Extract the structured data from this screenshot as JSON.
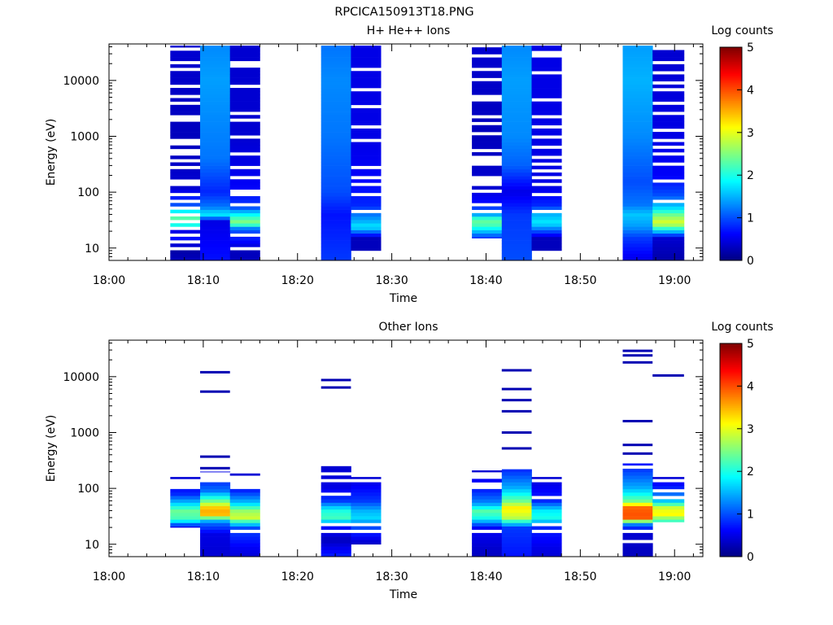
{
  "figure_title": "RPCICA150913T18.PNG",
  "chart_data": [
    {
      "type": "heatmap",
      "title": "H+ He++ Ions",
      "xlabel": "Time",
      "ylabel": "Energy (eV)",
      "y_scale": "log",
      "ylim": [
        6,
        45000
      ],
      "xlim": [
        "18:00",
        "19:03"
      ],
      "x_ticks": [
        "18:00",
        "18:10",
        "18:20",
        "18:30",
        "18:40",
        "18:50",
        "19:00"
      ],
      "y_ticks": [
        "10",
        "100",
        "1000",
        "10000"
      ],
      "colorbar": {
        "label": "Log counts",
        "range": [
          0,
          5
        ],
        "ticks": [
          "0",
          "1",
          "2",
          "3",
          "4",
          "5"
        ],
        "colormap": "jet"
      },
      "columns": [
        {
          "start": "18:06:30",
          "end": "18:09:40",
          "emin": 6,
          "emax": 42000,
          "profile": [
            [
              6,
              0.3
            ],
            [
              9,
              0.2
            ],
            [
              15,
              0.7
            ],
            [
              20,
              0.5
            ],
            [
              28,
              2.4
            ],
            [
              40,
              2.2
            ],
            [
              60,
              1.0
            ],
            [
              120,
              0.4
            ],
            [
              1000,
              0.3
            ],
            [
              42000,
              0.4
            ]
          ],
          "gaps": [
            10,
            13,
            17,
            24,
            30,
            38,
            52,
            68,
            85,
            130,
            170,
            270,
            380,
            480,
            580,
            700,
            820,
            1900,
            2200,
            3800,
            5500,
            8000,
            15000,
            22000,
            38000
          ]
        },
        {
          "start": "18:09:40",
          "end": "18:12:50",
          "emin": 6,
          "emax": 42000,
          "profile": [
            [
              6,
              0.7
            ],
            [
              30,
              0.5
            ],
            [
              40,
              1.8
            ],
            [
              55,
              1.2
            ],
            [
              100,
              0.8
            ],
            [
              400,
              1.2
            ],
            [
              2000,
              1.3
            ],
            [
              10000,
              1.4
            ],
            [
              42000,
              1.3
            ]
          ],
          "gaps": []
        },
        {
          "start": "18:12:50",
          "end": "18:16:00",
          "emin": 6,
          "emax": 42000,
          "profile": [
            [
              6,
              0.3
            ],
            [
              9,
              0.3
            ],
            [
              22,
              1.1
            ],
            [
              28,
              2.6
            ],
            [
              38,
              2.0
            ],
            [
              55,
              0.9
            ],
            [
              120,
              0.6
            ],
            [
              1000,
              0.4
            ],
            [
              42000,
              0.4
            ]
          ],
          "gaps": [
            10,
            17,
            64,
            95,
            110,
            190,
            290,
            480,
            1000,
            1900,
            2600,
            8000,
            18000,
            22000
          ]
        },
        {
          "start": "18:22:30",
          "end": "18:25:40",
          "emin": 6,
          "emax": 42000,
          "profile": [
            [
              6,
              0.9
            ],
            [
              40,
              0.7
            ],
            [
              100,
              1.0
            ],
            [
              1000,
              1.2
            ],
            [
              10000,
              1.3
            ],
            [
              42000,
              1.2
            ]
          ],
          "gaps": []
        },
        {
          "start": "18:25:40",
          "end": "18:28:50",
          "emin": 9,
          "emax": 42000,
          "profile": [
            [
              9,
              0.3
            ],
            [
              15,
              0.3
            ],
            [
              24,
              1.8
            ],
            [
              30,
              1.5
            ],
            [
              40,
              1.2
            ],
            [
              60,
              0.8
            ],
            [
              200,
              0.6
            ],
            [
              1000,
              0.5
            ],
            [
              42000,
              0.5
            ]
          ],
          "gaps": [
            45,
            95,
            130,
            180,
            280,
            800,
            1500,
            3500,
            7000,
            15000
          ]
        },
        {
          "start": "18:38:30",
          "end": "18:41:40",
          "emin": 15,
          "emax": 42000,
          "profile": [
            [
              15,
              0.8
            ],
            [
              25,
              2.2
            ],
            [
              32,
              2.4
            ],
            [
              40,
              1.4
            ],
            [
              60,
              0.7
            ],
            [
              120,
              0.4
            ],
            [
              1000,
              0.3
            ],
            [
              42000,
              0.4
            ]
          ],
          "gaps": [
            45,
            64,
            110,
            135,
            170,
            190,
            300,
            350,
            430,
            580,
            1100,
            1600,
            2300,
            4300,
            5500,
            11000,
            15000,
            26000,
            40000
          ]
        },
        {
          "start": "18:41:40",
          "end": "18:44:50",
          "emin": 6,
          "emax": 42000,
          "profile": [
            [
              6,
              1.0
            ],
            [
              40,
              0.9
            ],
            [
              100,
              0.5
            ],
            [
              300,
              1.1
            ],
            [
              1000,
              1.3
            ],
            [
              10000,
              1.4
            ],
            [
              42000,
              1.3
            ]
          ],
          "gaps": []
        },
        {
          "start": "18:44:50",
          "end": "18:48:00",
          "emin": 9,
          "emax": 42000,
          "profile": [
            [
              9,
              0.3
            ],
            [
              15,
              0.3
            ],
            [
              28,
              1.8
            ],
            [
              40,
              1.5
            ],
            [
              60,
              0.8
            ],
            [
              120,
              0.5
            ],
            [
              1000,
              0.5
            ],
            [
              42000,
              0.5
            ]
          ],
          "gaps": [
            45,
            95,
            130,
            190,
            230,
            330,
            430,
            620,
            950,
            1400,
            2200,
            4500,
            14000,
            26000,
            33000
          ]
        },
        {
          "start": "18:54:30",
          "end": "18:57:40",
          "emin": 6,
          "emax": 42000,
          "profile": [
            [
              6,
              0.5
            ],
            [
              15,
              0.9
            ],
            [
              25,
              1.4
            ],
            [
              40,
              1.6
            ],
            [
              60,
              1.2
            ],
            [
              150,
              1.0
            ],
            [
              1000,
              1.3
            ],
            [
              10000,
              1.5
            ],
            [
              42000,
              1.4
            ]
          ],
          "gaps": []
        },
        {
          "start": "18:57:40",
          "end": "19:01:00",
          "emin": 6,
          "emax": 35000,
          "profile": [
            [
              6,
              0.2
            ],
            [
              15,
              0.4
            ],
            [
              28,
              3.0
            ],
            [
              38,
              2.5
            ],
            [
              55,
              1.6
            ],
            [
              90,
              1.0
            ],
            [
              200,
              0.6
            ],
            [
              1000,
              0.5
            ],
            [
              35000,
              0.4
            ]
          ],
          "gaps": [
            65,
            170,
            330,
            480,
            620,
            900,
            1300,
            2700,
            3800,
            7000,
            9000,
            14000,
            21000
          ]
        }
      ]
    },
    {
      "type": "heatmap",
      "title": "Other Ions",
      "xlabel": "Time",
      "ylabel": "Energy (eV)",
      "y_scale": "log",
      "ylim": [
        6,
        45000
      ],
      "xlim": [
        "18:00",
        "19:03"
      ],
      "x_ticks": [
        "18:00",
        "18:10",
        "18:20",
        "18:30",
        "18:40",
        "18:50",
        "19:00"
      ],
      "y_ticks": [
        "10",
        "100",
        "1000",
        "10000"
      ],
      "colorbar": {
        "label": "Log counts",
        "range": [
          0,
          5
        ],
        "ticks": [
          "0",
          "1",
          "2",
          "3",
          "4",
          "5"
        ],
        "colormap": "jet"
      },
      "columns": [
        {
          "start": "18:06:30",
          "end": "18:09:40",
          "emin": 20,
          "emax": 160,
          "profile": [
            [
              20,
              0.4
            ],
            [
              28,
              2.2
            ],
            [
              40,
              2.4
            ],
            [
              55,
              1.6
            ],
            [
              80,
              0.8
            ],
            [
              160,
              0.4
            ]
          ],
          "gaps": [
            105,
            125,
            140
          ],
          "lines": []
        },
        {
          "start": "18:09:40",
          "end": "18:12:50",
          "emin": 6,
          "emax": 200,
          "profile": [
            [
              6,
              0.4
            ],
            [
              15,
              0.5
            ],
            [
              25,
              1.2
            ],
            [
              35,
              3.6
            ],
            [
              45,
              3.4
            ],
            [
              60,
              2.4
            ],
            [
              90,
              1.2
            ],
            [
              200,
              0.5
            ]
          ],
          "gaps": [
            130,
            155,
            180
          ],
          "lines": [
            230,
            370,
            5400,
            12000
          ]
        },
        {
          "start": "18:12:50",
          "end": "18:16:00",
          "emin": 6,
          "emax": 185,
          "profile": [
            [
              6,
              0.4
            ],
            [
              20,
              1.0
            ],
            [
              30,
              2.9
            ],
            [
              40,
              2.6
            ],
            [
              55,
              1.6
            ],
            [
              90,
              0.8
            ],
            [
              185,
              0.4
            ]
          ],
          "gaps": [
            16,
            100,
            120,
            145,
            160
          ],
          "lines": []
        },
        {
          "start": "18:22:30",
          "end": "18:25:40",
          "emin": 6,
          "emax": 250,
          "profile": [
            [
              6,
              0.8
            ],
            [
              12,
              0.3
            ],
            [
              20,
              0.7
            ],
            [
              30,
              2.2
            ],
            [
              40,
              2.0
            ],
            [
              60,
              0.9
            ],
            [
              100,
              0.5
            ],
            [
              250,
              0.4
            ]
          ],
          "gaps": [
            16,
            24,
            75,
            130,
            175
          ],
          "lines": [
            6400,
            8700
          ]
        },
        {
          "start": "18:25:40",
          "end": "18:28:50",
          "emin": 10,
          "emax": 160,
          "profile": [
            [
              10,
              0.3
            ],
            [
              20,
              1.0
            ],
            [
              30,
              1.7
            ],
            [
              40,
              1.5
            ],
            [
              60,
              0.9
            ],
            [
              160,
              0.4
            ]
          ],
          "gaps": [
            16,
            24,
            135
          ],
          "lines": []
        },
        {
          "start": "18:38:30",
          "end": "18:41:40",
          "emin": 6,
          "emax": 210,
          "profile": [
            [
              6,
              0.3
            ],
            [
              20,
              0.6
            ],
            [
              30,
              2.0
            ],
            [
              40,
              2.3
            ],
            [
              55,
              1.3
            ],
            [
              90,
              0.8
            ],
            [
              210,
              0.4
            ]
          ],
          "gaps": [
            16,
            100,
            125,
            150,
            190
          ],
          "lines": []
        },
        {
          "start": "18:41:40",
          "end": "18:44:50",
          "emin": 6,
          "emax": 220,
          "profile": [
            [
              6,
              0.7
            ],
            [
              20,
              0.9
            ],
            [
              30,
              2.8
            ],
            [
              45,
              3.2
            ],
            [
              60,
              2.4
            ],
            [
              100,
              1.5
            ],
            [
              220,
              0.8
            ]
          ],
          "gaps": [],
          "lines": [
            520,
            1000,
            2400,
            3800,
            6000,
            13000
          ]
        },
        {
          "start": "18:44:50",
          "end": "18:48:00",
          "emin": 6,
          "emax": 160,
          "profile": [
            [
              6,
              0.4
            ],
            [
              20,
              0.8
            ],
            [
              30,
              2.0
            ],
            [
              40,
              1.8
            ],
            [
              60,
              0.8
            ],
            [
              160,
              0.4
            ]
          ],
          "gaps": [
            16,
            24,
            70,
            140
          ],
          "lines": []
        },
        {
          "start": "18:54:30",
          "end": "18:57:40",
          "emin": 6,
          "emax": 280,
          "profile": [
            [
              6,
              0.3
            ],
            [
              15,
              0.4
            ],
            [
              22,
              1.0
            ],
            [
              30,
              4.0
            ],
            [
              45,
              3.9
            ],
            [
              60,
              2.4
            ],
            [
              100,
              1.5
            ],
            [
              280,
              0.7
            ]
          ],
          "gaps": [
            12,
            18,
            240
          ],
          "lines": [
            420,
            600,
            1600,
            18000,
            24000,
            29000
          ]
        },
        {
          "start": "18:57:40",
          "end": "19:01:00",
          "emin": 25,
          "emax": 160,
          "profile": [
            [
              25,
              2.0
            ],
            [
              35,
              3.2
            ],
            [
              45,
              2.9
            ],
            [
              60,
              1.6
            ],
            [
              100,
              0.8
            ],
            [
              160,
              0.4
            ]
          ],
          "gaps": [
            70,
            95,
            135
          ],
          "lines": [
            10500
          ]
        }
      ]
    }
  ]
}
